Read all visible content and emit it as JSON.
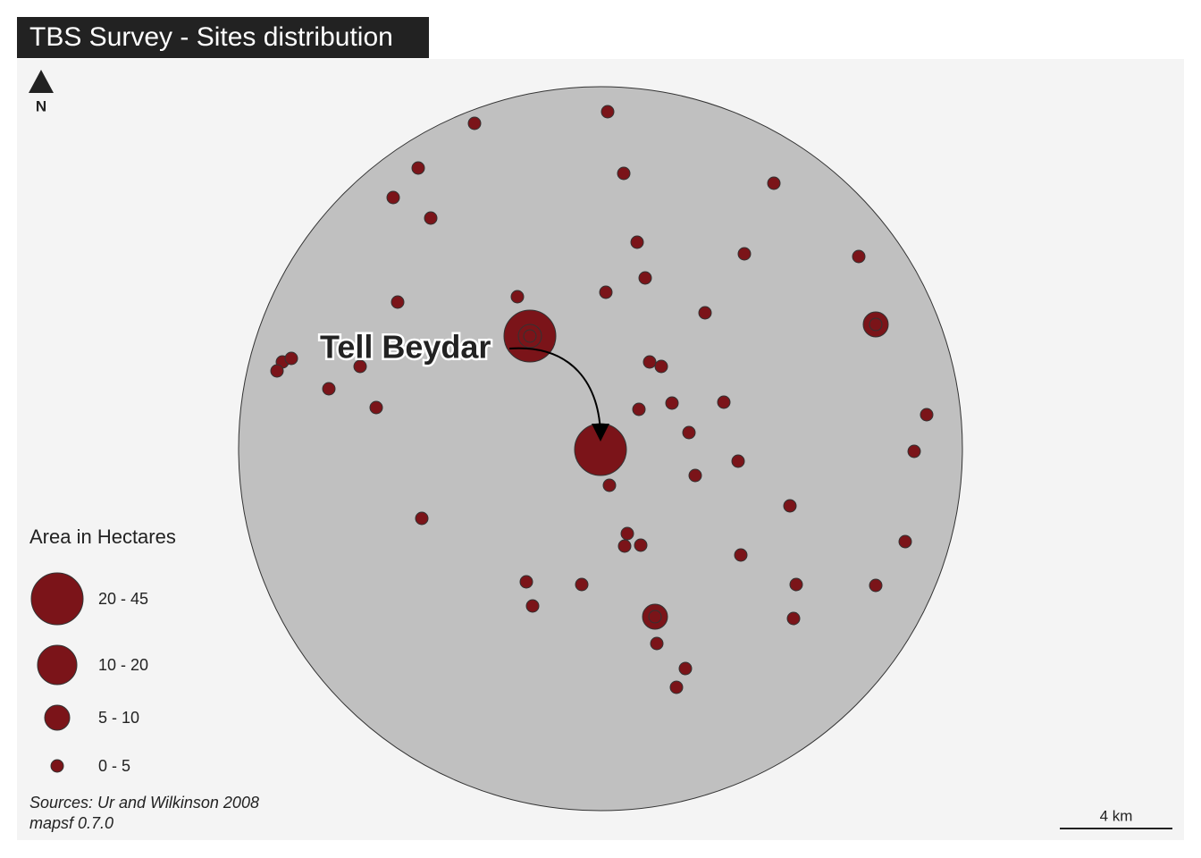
{
  "header": {
    "title": "TBS Survey - Sites distribution"
  },
  "north_arrow": {
    "label": "N"
  },
  "annotation": {
    "label": "Tell Beydar"
  },
  "legend": {
    "title": "Area in Hectares",
    "items": [
      {
        "label": "20 - 45"
      },
      {
        "label": "10 - 20"
      },
      {
        "label": "5 - 10"
      },
      {
        "label": "0 - 5"
      }
    ]
  },
  "credits": {
    "lines": [
      "Sources: Ur and Wilkinson 2008",
      "mapsf 0.7.0"
    ]
  },
  "scale_bar": {
    "label": "4 km"
  }
}
